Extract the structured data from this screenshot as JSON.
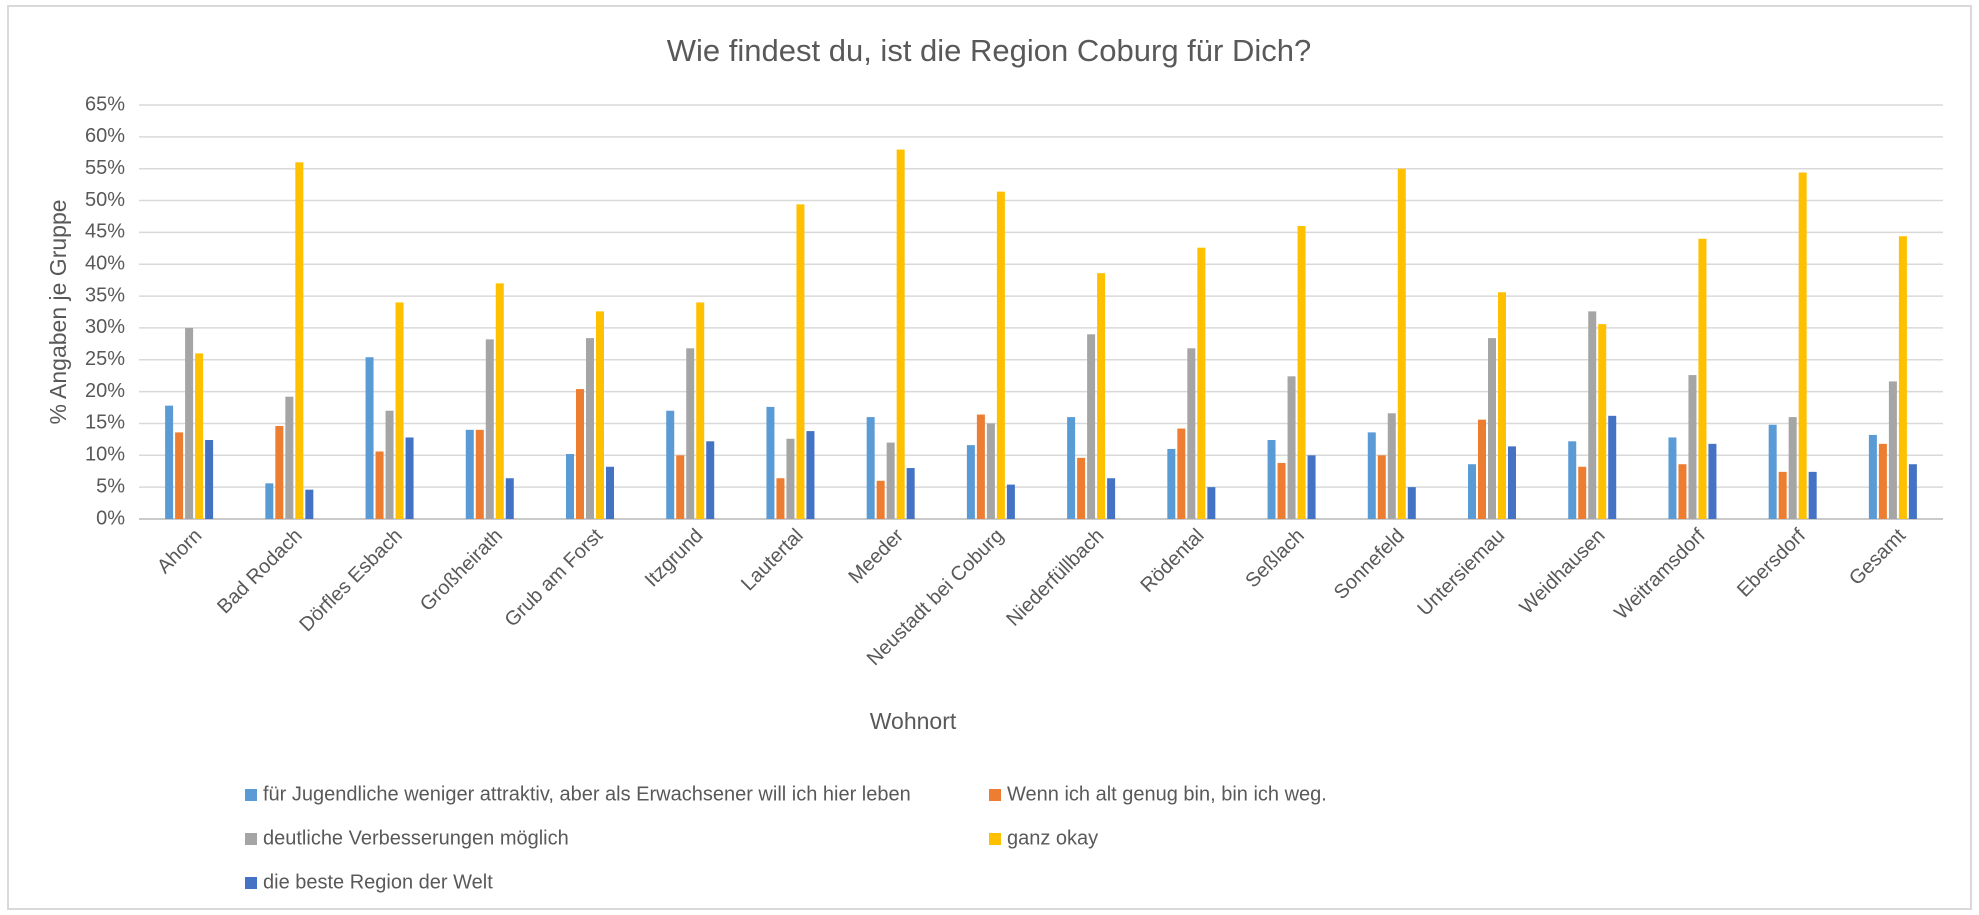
{
  "chart_data": {
    "type": "bar",
    "title": "Wie findest du, ist die Region Coburg für Dich?",
    "x_label": "Wohnort",
    "y_label": "% Angaben je Gruppe",
    "categories": [
      "Ahorn",
      "Bad Rodach",
      "Dörfles Esbach",
      "Großheirath",
      "Grub am Forst",
      "Itzgrund",
      "Lautertal",
      "Meeder",
      "Neustadt bei Coburg",
      "Niederfüllbach",
      "Rödental",
      "Seßlach",
      "Sonnefeld",
      "Untersiemau",
      "Weidhausen",
      "Weitramsdorf",
      "Ebersdorf",
      "Gesamt"
    ],
    "series": [
      {
        "name": "für Jugendliche weniger attraktiv, aber als Erwachsener will ich hier leben",
        "color": "#5b9bd5",
        "values": [
          17.8,
          5.6,
          25.4,
          14,
          10.2,
          17,
          17.6,
          16,
          11.6,
          16,
          11,
          12.4,
          13.6,
          8.6,
          12.2,
          12.8,
          14.8,
          13.2
        ]
      },
      {
        "name": "Wenn ich alt genug bin, bin ich weg.",
        "color": "#ed7d31",
        "values": [
          13.6,
          14.6,
          10.6,
          14,
          20.4,
          10,
          6.4,
          6,
          16.4,
          9.6,
          14.2,
          8.8,
          10,
          15.6,
          8.2,
          8.6,
          7.4,
          11.8
        ]
      },
      {
        "name": "deutliche Verbesserungen möglich",
        "color": "#a5a5a5",
        "values": [
          30,
          19.2,
          17,
          28.2,
          28.4,
          26.8,
          12.6,
          12,
          15,
          29,
          26.8,
          22.4,
          16.6,
          28.4,
          32.6,
          22.6,
          16,
          21.6
        ]
      },
      {
        "name": "ganz okay",
        "color": "#ffc000",
        "values": [
          26,
          56,
          34,
          37,
          32.6,
          34,
          49.4,
          58,
          51.4,
          38.6,
          42.6,
          46,
          55,
          35.6,
          30.6,
          44,
          54.4,
          44.4
        ]
      },
      {
        "name": "die beste Region der Welt",
        "color": "#4472c4",
        "values": [
          12.4,
          4.6,
          12.8,
          6.4,
          8.2,
          12.2,
          13.8,
          8,
          5.4,
          6.4,
          5,
          10,
          5,
          11.4,
          16.2,
          11.8,
          7.4,
          8.6
        ]
      }
    ],
    "ylim": [
      0,
      65
    ],
    "yticks": [
      {
        "value": 0,
        "label": "0%"
      },
      {
        "value": 5,
        "label": "5%"
      },
      {
        "value": 10,
        "label": "10%"
      },
      {
        "value": 15,
        "label": "15%"
      },
      {
        "value": 20,
        "label": "20%"
      },
      {
        "value": 25,
        "label": "25%"
      },
      {
        "value": 30,
        "label": "30%"
      },
      {
        "value": 35,
        "label": "35%"
      },
      {
        "value": 40,
        "label": "40%"
      },
      {
        "value": 45,
        "label": "45%"
      },
      {
        "value": 50,
        "label": "50%"
      },
      {
        "value": 55,
        "label": "55%"
      },
      {
        "value": 60,
        "label": "60%"
      },
      {
        "value": 65,
        "label": "65%"
      }
    ],
    "grid": true,
    "legend": "bottom"
  }
}
